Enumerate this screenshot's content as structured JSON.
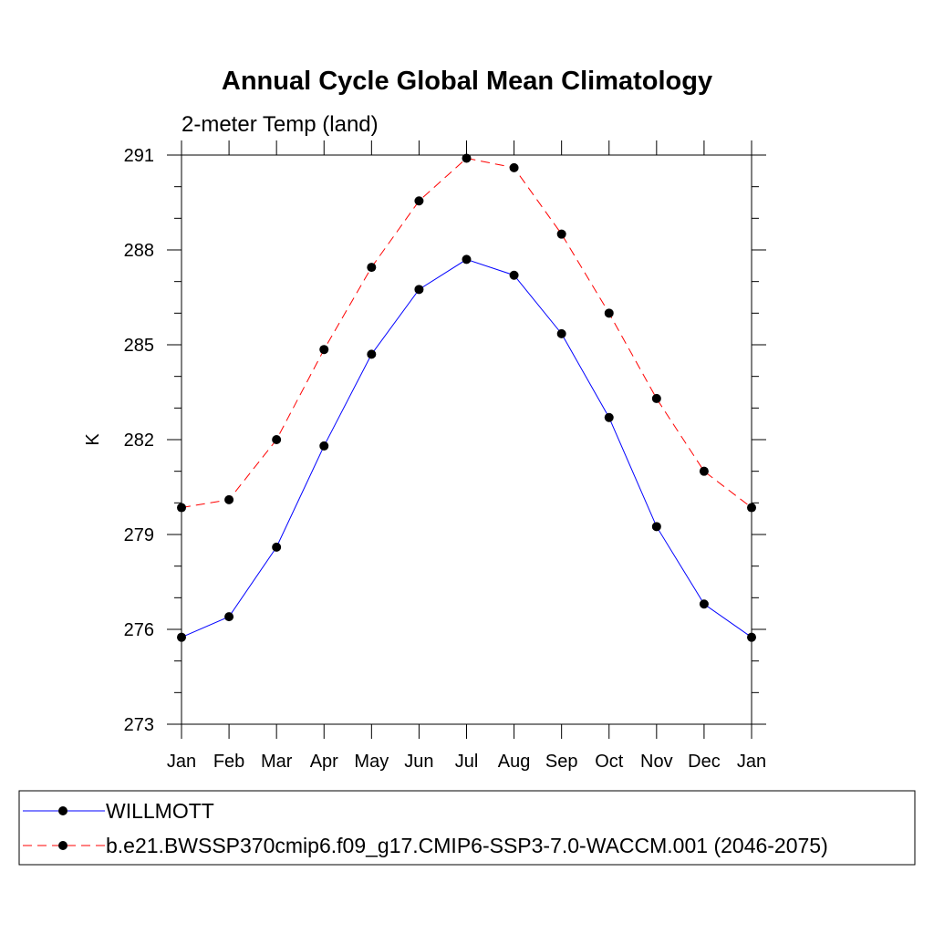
{
  "chart_data": {
    "type": "line",
    "title": "Annual Cycle Global Mean Climatology",
    "subtitle": "2-meter Temp (land)",
    "xlabel": "",
    "ylabel": "K",
    "categories": [
      "Jan",
      "Feb",
      "Mar",
      "Apr",
      "May",
      "Jun",
      "Jul",
      "Aug",
      "Sep",
      "Oct",
      "Nov",
      "Dec",
      "Jan"
    ],
    "ylim": [
      273,
      291
    ],
    "yticks": [
      273,
      276,
      279,
      282,
      285,
      288,
      291
    ],
    "ytick_labels": [
      "273",
      "276",
      "279",
      "282",
      "285",
      "288",
      "291"
    ],
    "grid": false,
    "legend_position": "bottom",
    "series": [
      {
        "name": "WILLMOTT",
        "color": "#0000ff",
        "dash": "solid",
        "values": [
          275.75,
          276.4,
          278.6,
          281.8,
          284.7,
          286.75,
          287.7,
          287.2,
          285.35,
          282.7,
          279.25,
          276.8,
          275.75
        ]
      },
      {
        "name": "b.e21.BWSSP370cmip6.f09_g17.CMIP6-SSP3-7.0-WACCM.001 (2046-2075)",
        "color": "#ff0000",
        "dash": "dashed",
        "values": [
          279.85,
          280.1,
          282.0,
          284.85,
          287.45,
          289.55,
          290.9,
          290.6,
          288.5,
          286.0,
          283.3,
          281.0,
          279.85
        ]
      }
    ]
  }
}
